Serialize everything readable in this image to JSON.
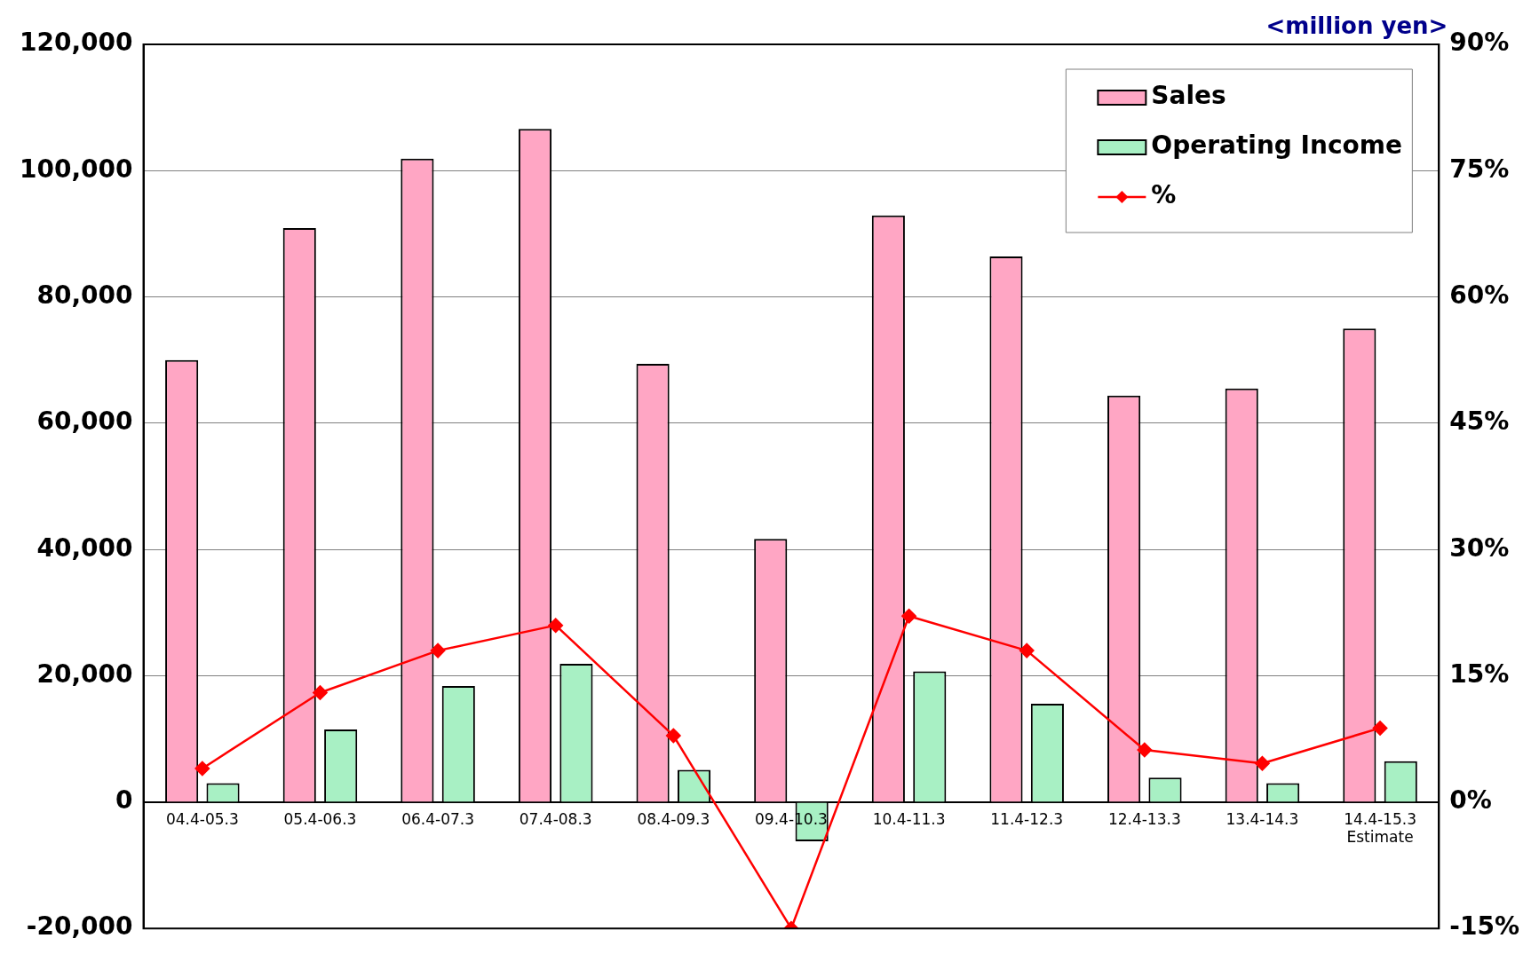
{
  "chart_data": {
    "type": "bar",
    "categories": [
      "04.4-05.3",
      "05.4-06.3",
      "06.4-07.3",
      "07.4-08.3",
      "08.4-09.3",
      "09.4-10.3",
      "10.4-11.3",
      "11.4-12.3",
      "12.4-13.3",
      "13.4-14.3",
      "14.4-15.3\nEstimate"
    ],
    "series": [
      {
        "name": "Sales",
        "color": "#ffa6c4",
        "values": [
          70000,
          90900,
          101900,
          106600,
          69400,
          41700,
          92900,
          86400,
          64400,
          65500,
          75000
        ]
      },
      {
        "name": "Operating Income",
        "color": "#a8f0c4",
        "values": [
          3000,
          11500,
          18400,
          21900,
          5100,
          -6200,
          20700,
          15600,
          3900,
          3000,
          6500
        ]
      },
      {
        "name": "%",
        "type": "line",
        "axis": "y2",
        "color": "#ff0000",
        "marker": "diamond",
        "values": [
          4.0,
          13.0,
          18.0,
          21.0,
          7.9,
          -15.0,
          22.1,
          18.0,
          6.2,
          4.6,
          8.8
        ]
      }
    ],
    "ylim": [
      -20000,
      120000
    ],
    "yticks": [
      {
        "value": -20000,
        "label": "-20,000"
      },
      {
        "value": 0,
        "label": "0"
      },
      {
        "value": 20000,
        "label": "20,000"
      },
      {
        "value": 40000,
        "label": "40,000"
      },
      {
        "value": 60000,
        "label": "60,000"
      },
      {
        "value": 80000,
        "label": "80,000"
      },
      {
        "value": 100000,
        "label": "100,000"
      },
      {
        "value": 120000,
        "label": "120,000"
      }
    ],
    "y2lim": [
      -15,
      90
    ],
    "y2ticks": [
      {
        "value": -15,
        "label": "-15%"
      },
      {
        "value": 0,
        "label": "0%"
      },
      {
        "value": 15,
        "label": "15%"
      },
      {
        "value": 30,
        "label": "30%"
      },
      {
        "value": 45,
        "label": "45%"
      },
      {
        "value": 60,
        "label": "60%"
      },
      {
        "value": 75,
        "label": "75%"
      },
      {
        "value": 90,
        "label": "90%"
      }
    ],
    "annotations": [
      "<million yen>"
    ],
    "grid": "y",
    "legend": "top right"
  }
}
